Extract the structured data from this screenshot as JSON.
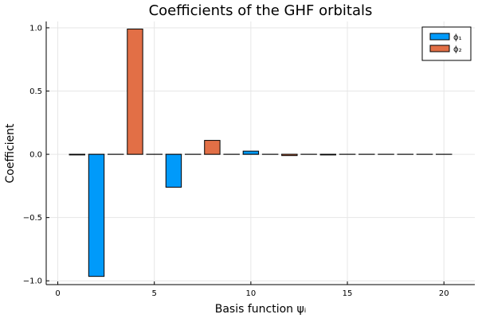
{
  "chart_data": {
    "type": "bar",
    "title": "Coefficients of the GHF orbitals",
    "xlabel": "Basis function ψᵢ",
    "ylabel": "Coefficient",
    "xlim": [
      -0.6,
      21.6
    ],
    "ylim": [
      -1.03,
      1.05
    ],
    "xticks": [
      0,
      5,
      10,
      15,
      20
    ],
    "yticks": [
      -1.0,
      -0.5,
      0.0,
      0.5,
      1.0
    ],
    "ytick_labels": [
      "−1.0",
      "−0.5",
      "0.0",
      "0.5",
      "1.0"
    ],
    "grid": true,
    "legend_position": "top-right",
    "bar_width": 0.8,
    "x": [
      1,
      2,
      3,
      4,
      5,
      6,
      7,
      8,
      9,
      10,
      11,
      12,
      13,
      14,
      15,
      16,
      17,
      18,
      19,
      20
    ],
    "series": [
      {
        "name": "ϕ₁",
        "color": "#009AFA",
        "values": [
          -0.005,
          -0.965,
          0,
          0,
          0,
          -0.26,
          0,
          0,
          0,
          0.025,
          0,
          0,
          0,
          -0.005,
          0,
          0,
          0,
          0,
          0,
          0
        ]
      },
      {
        "name": "ϕ₂",
        "color": "#E26F46",
        "values": [
          0,
          0,
          0,
          0.99,
          0,
          0,
          0,
          0.11,
          0,
          0,
          0,
          -0.01,
          0,
          0,
          0,
          0,
          0,
          0,
          0,
          0
        ]
      }
    ]
  }
}
